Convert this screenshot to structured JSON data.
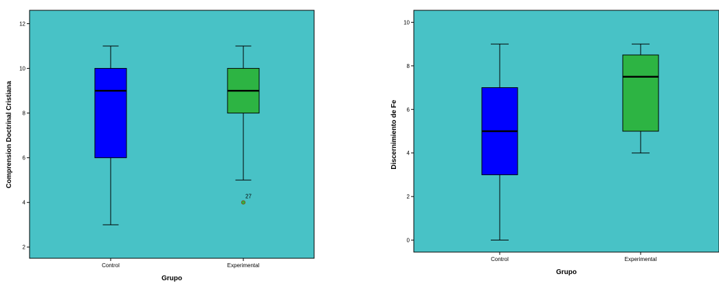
{
  "chart_data": [
    {
      "type": "box",
      "xlabel": "Grupo",
      "ylabel": "Comprension  Doctrinal Cristiana",
      "categories": [
        "Control",
        "Experimental"
      ],
      "ylim": [
        1.5,
        12.6
      ],
      "yticks": [
        2,
        4,
        6,
        8,
        10,
        12
      ],
      "plot_background": "#48c2c6",
      "boxes": [
        {
          "category": "Control",
          "min": 3,
          "q1": 6,
          "median": 9,
          "q3": 10,
          "max": 11,
          "color": "#0000ff",
          "outliers": []
        },
        {
          "category": "Experimental",
          "min": 5,
          "q1": 8,
          "median": 9,
          "q3": 10,
          "max": 11,
          "color": "#2db443",
          "outliers": [
            {
              "value": 4,
              "label": "27"
            }
          ]
        }
      ]
    },
    {
      "type": "box",
      "xlabel": "Grupo",
      "ylabel": "Discernimiento de  Fe",
      "categories": [
        "Control",
        "Experimental"
      ],
      "ylim": [
        -0.55,
        10.55
      ],
      "yticks": [
        0,
        2,
        4,
        6,
        8,
        10
      ],
      "plot_background": "#48c2c6",
      "boxes": [
        {
          "category": "Control",
          "min": 0,
          "q1": 3,
          "median": 5,
          "q3": 7,
          "max": 9,
          "color": "#0000ff",
          "outliers": []
        },
        {
          "category": "Experimental",
          "min": 4,
          "q1": 5,
          "median": 7.5,
          "q3": 8.5,
          "max": 9,
          "color": "#2db443",
          "outliers": []
        }
      ]
    }
  ]
}
